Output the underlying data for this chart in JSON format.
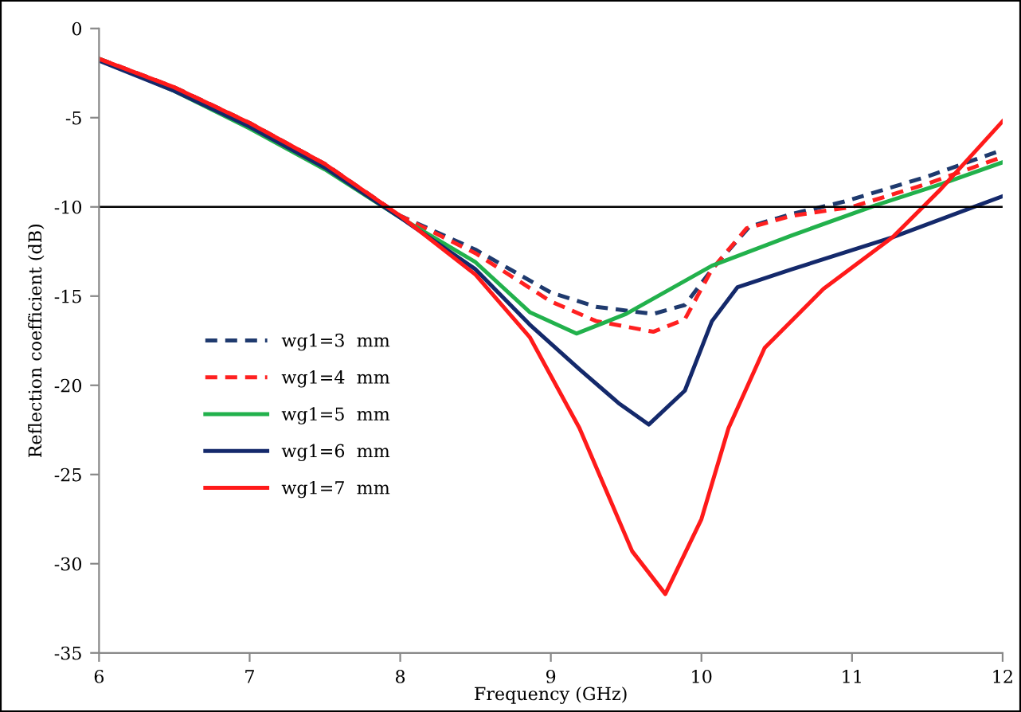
{
  "chart_data": {
    "type": "line",
    "xlabel": "Frequency (GHz)",
    "ylabel": "Reflection coefficient (dB)",
    "xlim": [
      6,
      12
    ],
    "xticks": [
      6,
      7,
      8,
      9,
      10,
      11,
      12
    ],
    "ylim": [
      -35,
      0
    ],
    "yticks": [
      -35,
      -30,
      -25,
      -20,
      -15,
      -10,
      -5,
      0
    ],
    "grid": false,
    "legend": "left",
    "marker": "none",
    "ref_lines": [
      {
        "axis": "y",
        "value": -10,
        "color": "#000000"
      }
    ],
    "series": [
      {
        "name": "wg1=3  mm",
        "color": "#1f3a6e",
        "line_style": "dashed",
        "x": [
          6,
          6.5,
          7,
          7.5,
          8,
          8.5,
          9,
          9.3,
          9.68,
          9.89,
          10.07,
          10.32,
          10.6,
          10.95,
          11.5,
          12
        ],
        "values": [
          -1.7,
          -3.3,
          -5.3,
          -7.6,
          -10.5,
          -12.4,
          -14.8,
          -15.6,
          -16.0,
          -15.5,
          -13.5,
          -11.1,
          -10.4,
          -9.7,
          -8.3,
          -6.8
        ]
      },
      {
        "name": "wg1=4  mm",
        "color": "#ff2020",
        "line_style": "dashed",
        "x": [
          6,
          6.5,
          7,
          7.5,
          8,
          8.5,
          9,
          9.3,
          9.68,
          9.89,
          10.07,
          10.3,
          10.6,
          11,
          11.5,
          12
        ],
        "values": [
          -1.7,
          -3.3,
          -5.3,
          -7.6,
          -10.5,
          -12.6,
          -15.3,
          -16.4,
          -17.0,
          -16.3,
          -13.5,
          -11.2,
          -10.5,
          -10.0,
          -8.7,
          -7.2
        ]
      },
      {
        "name": "wg1=5  mm",
        "color": "#22b14c",
        "line_style": "solid",
        "x": [
          6,
          6.5,
          7,
          7.5,
          8,
          8.5,
          8.86,
          9.17,
          9.5,
          10.07,
          10.6,
          11.16,
          11.6,
          12
        ],
        "values": [
          -1.7,
          -3.5,
          -5.6,
          -7.9,
          -10.6,
          -13.1,
          -15.9,
          -17.1,
          -16.0,
          -13.3,
          -11.6,
          -9.9,
          -8.7,
          -7.5
        ]
      },
      {
        "name": "wg1=6  mm",
        "color": "#14296b",
        "line_style": "solid",
        "x": [
          6,
          6.5,
          7,
          7.5,
          8,
          8.5,
          8.86,
          9.19,
          9.45,
          9.65,
          9.89,
          10.07,
          10.24,
          10.6,
          11.27,
          12
        ],
        "values": [
          -1.8,
          -3.5,
          -5.5,
          -7.8,
          -10.6,
          -13.5,
          -16.6,
          -19.1,
          -21.0,
          -22.2,
          -20.3,
          -16.4,
          -14.5,
          -13.5,
          -11.7,
          -9.4
        ]
      },
      {
        "name": "wg1=7  mm",
        "color": "#ff1a1a",
        "line_style": "solid",
        "x": [
          6,
          6.5,
          7,
          7.5,
          8,
          8.5,
          8.86,
          9.19,
          9.54,
          9.76,
          10.0,
          10.18,
          10.42,
          10.81,
          11.27,
          11.59,
          12
        ],
        "values": [
          -1.7,
          -3.3,
          -5.3,
          -7.6,
          -10.5,
          -13.8,
          -17.3,
          -22.4,
          -29.3,
          -31.7,
          -27.5,
          -22.4,
          -17.9,
          -14.6,
          -11.7,
          -9.0,
          -5.2
        ]
      }
    ]
  }
}
